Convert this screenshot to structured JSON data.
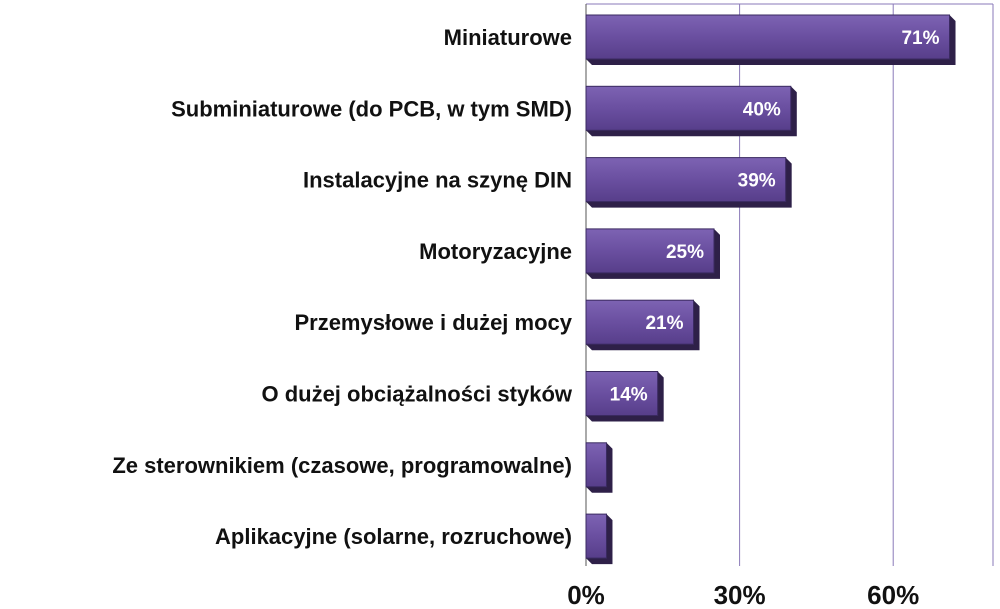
{
  "chart_data": {
    "type": "bar",
    "orientation": "horizontal",
    "categories": [
      "Miniaturowe",
      "Subminiaturowe (do PCB, w tym SMD)",
      "Instalacyjne na szynę DIN",
      "Motoryzacyjne",
      "Przemysłowe i dużej mocy",
      "O dużej obciążalności styków",
      "Ze sterownikiem (czasowe, programowalne)",
      "Aplikacyjne (solarne, rozruchowe)"
    ],
    "values": [
      71,
      40,
      39,
      25,
      21,
      14,
      4,
      4
    ],
    "value_labels": [
      "71%",
      "40%",
      "39%",
      "25%",
      "21%",
      "14%",
      "",
      ""
    ],
    "xlim": [
      0,
      78
    ],
    "x_ticks": [
      0,
      30,
      60
    ],
    "x_tick_labels": [
      "0%",
      "30%",
      "60%"
    ],
    "grid": "vertical",
    "bar_color": "#6a4fa0",
    "bar_edge_color": "#3a2a60",
    "bar_shadow_color": "#2e2048",
    "grid_color": "#8a7ab8"
  }
}
